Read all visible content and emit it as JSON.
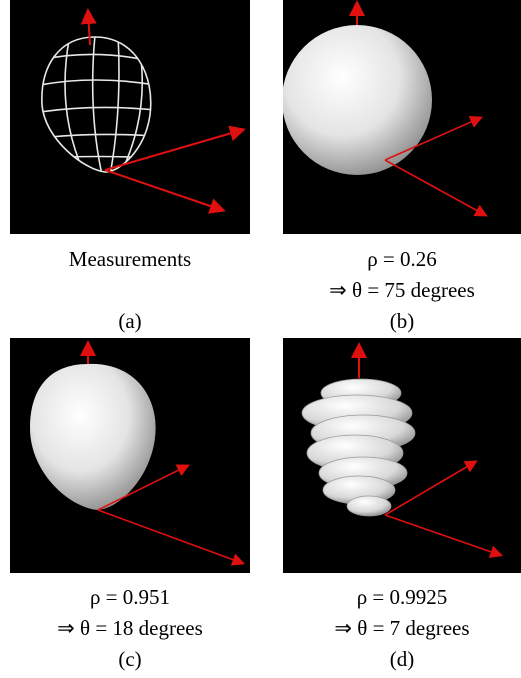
{
  "panels": [
    {
      "caption": [
        "Measurements"
      ],
      "label": "(a)"
    },
    {
      "caption": [
        "ρ = 0.26",
        "⇒ θ = 75 degrees"
      ],
      "label": "(b)"
    },
    {
      "caption": [
        "ρ = 0.951",
        "⇒ θ = 18 degrees"
      ],
      "label": "(c)"
    },
    {
      "caption": [
        "ρ = 0.9925",
        "⇒ θ = 7 degrees"
      ],
      "label": "(d)"
    }
  ]
}
